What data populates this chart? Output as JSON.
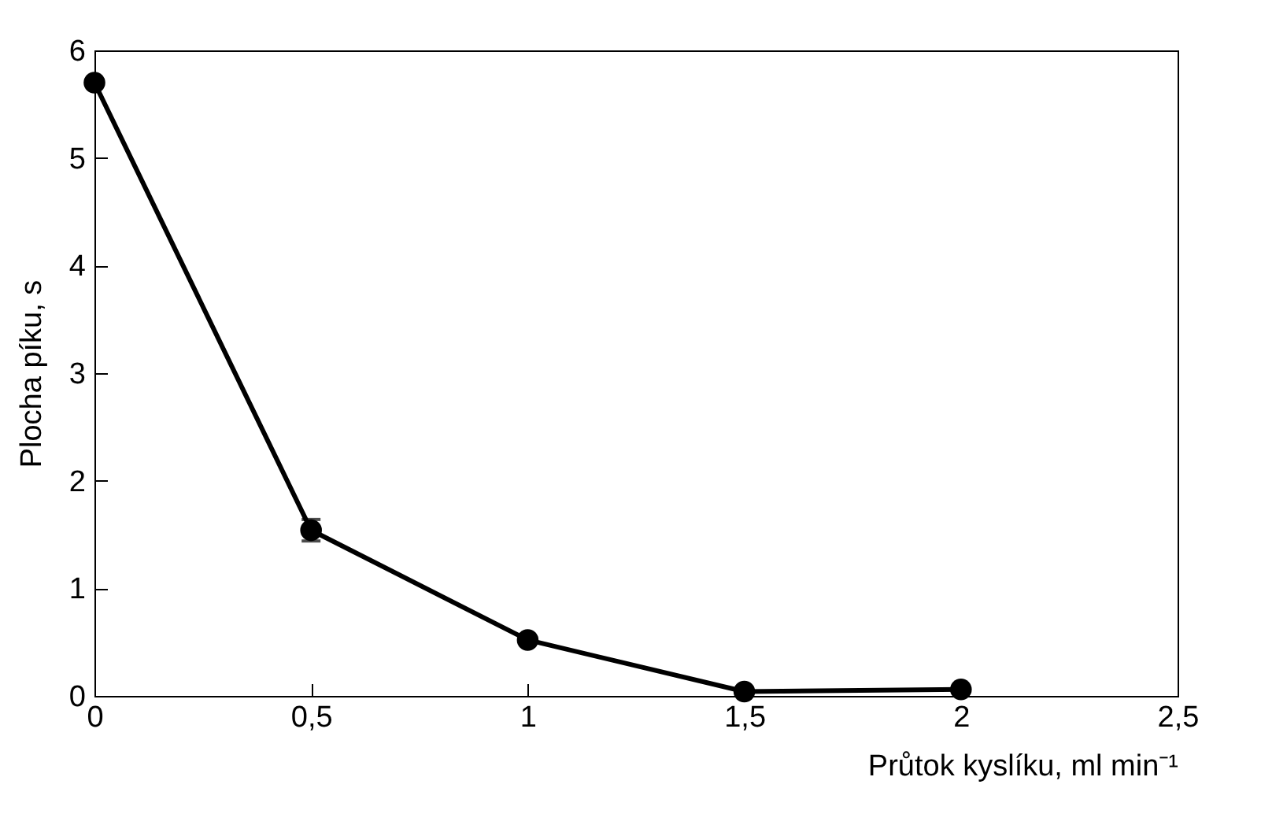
{
  "chart_data": {
    "type": "line",
    "xlabel": "Průtok kyslíku, ml min⁻¹",
    "ylabel": "Plocha píku, s",
    "x": [
      0,
      0.5,
      1,
      1.5,
      2
    ],
    "series": [
      {
        "color": "#000000",
        "values": [
          5.7,
          1.54,
          0.52,
          0.04,
          0.06
        ],
        "errors": [
          null,
          0.1,
          null,
          null,
          null
        ]
      }
    ],
    "xlim": [
      0,
      2.5
    ],
    "xticks": [
      0,
      {
        "value": 0.5,
        "label": "0,5"
      },
      1,
      {
        "value": 1.5,
        "label": "1,5"
      },
      2,
      {
        "value": 2.5,
        "label": "2,5"
      }
    ],
    "ylim": [
      0,
      6
    ],
    "yticks": [
      0,
      1,
      2,
      3,
      4,
      5,
      6
    ],
    "grid": false,
    "marker": "circle",
    "line_style": "solid"
  }
}
